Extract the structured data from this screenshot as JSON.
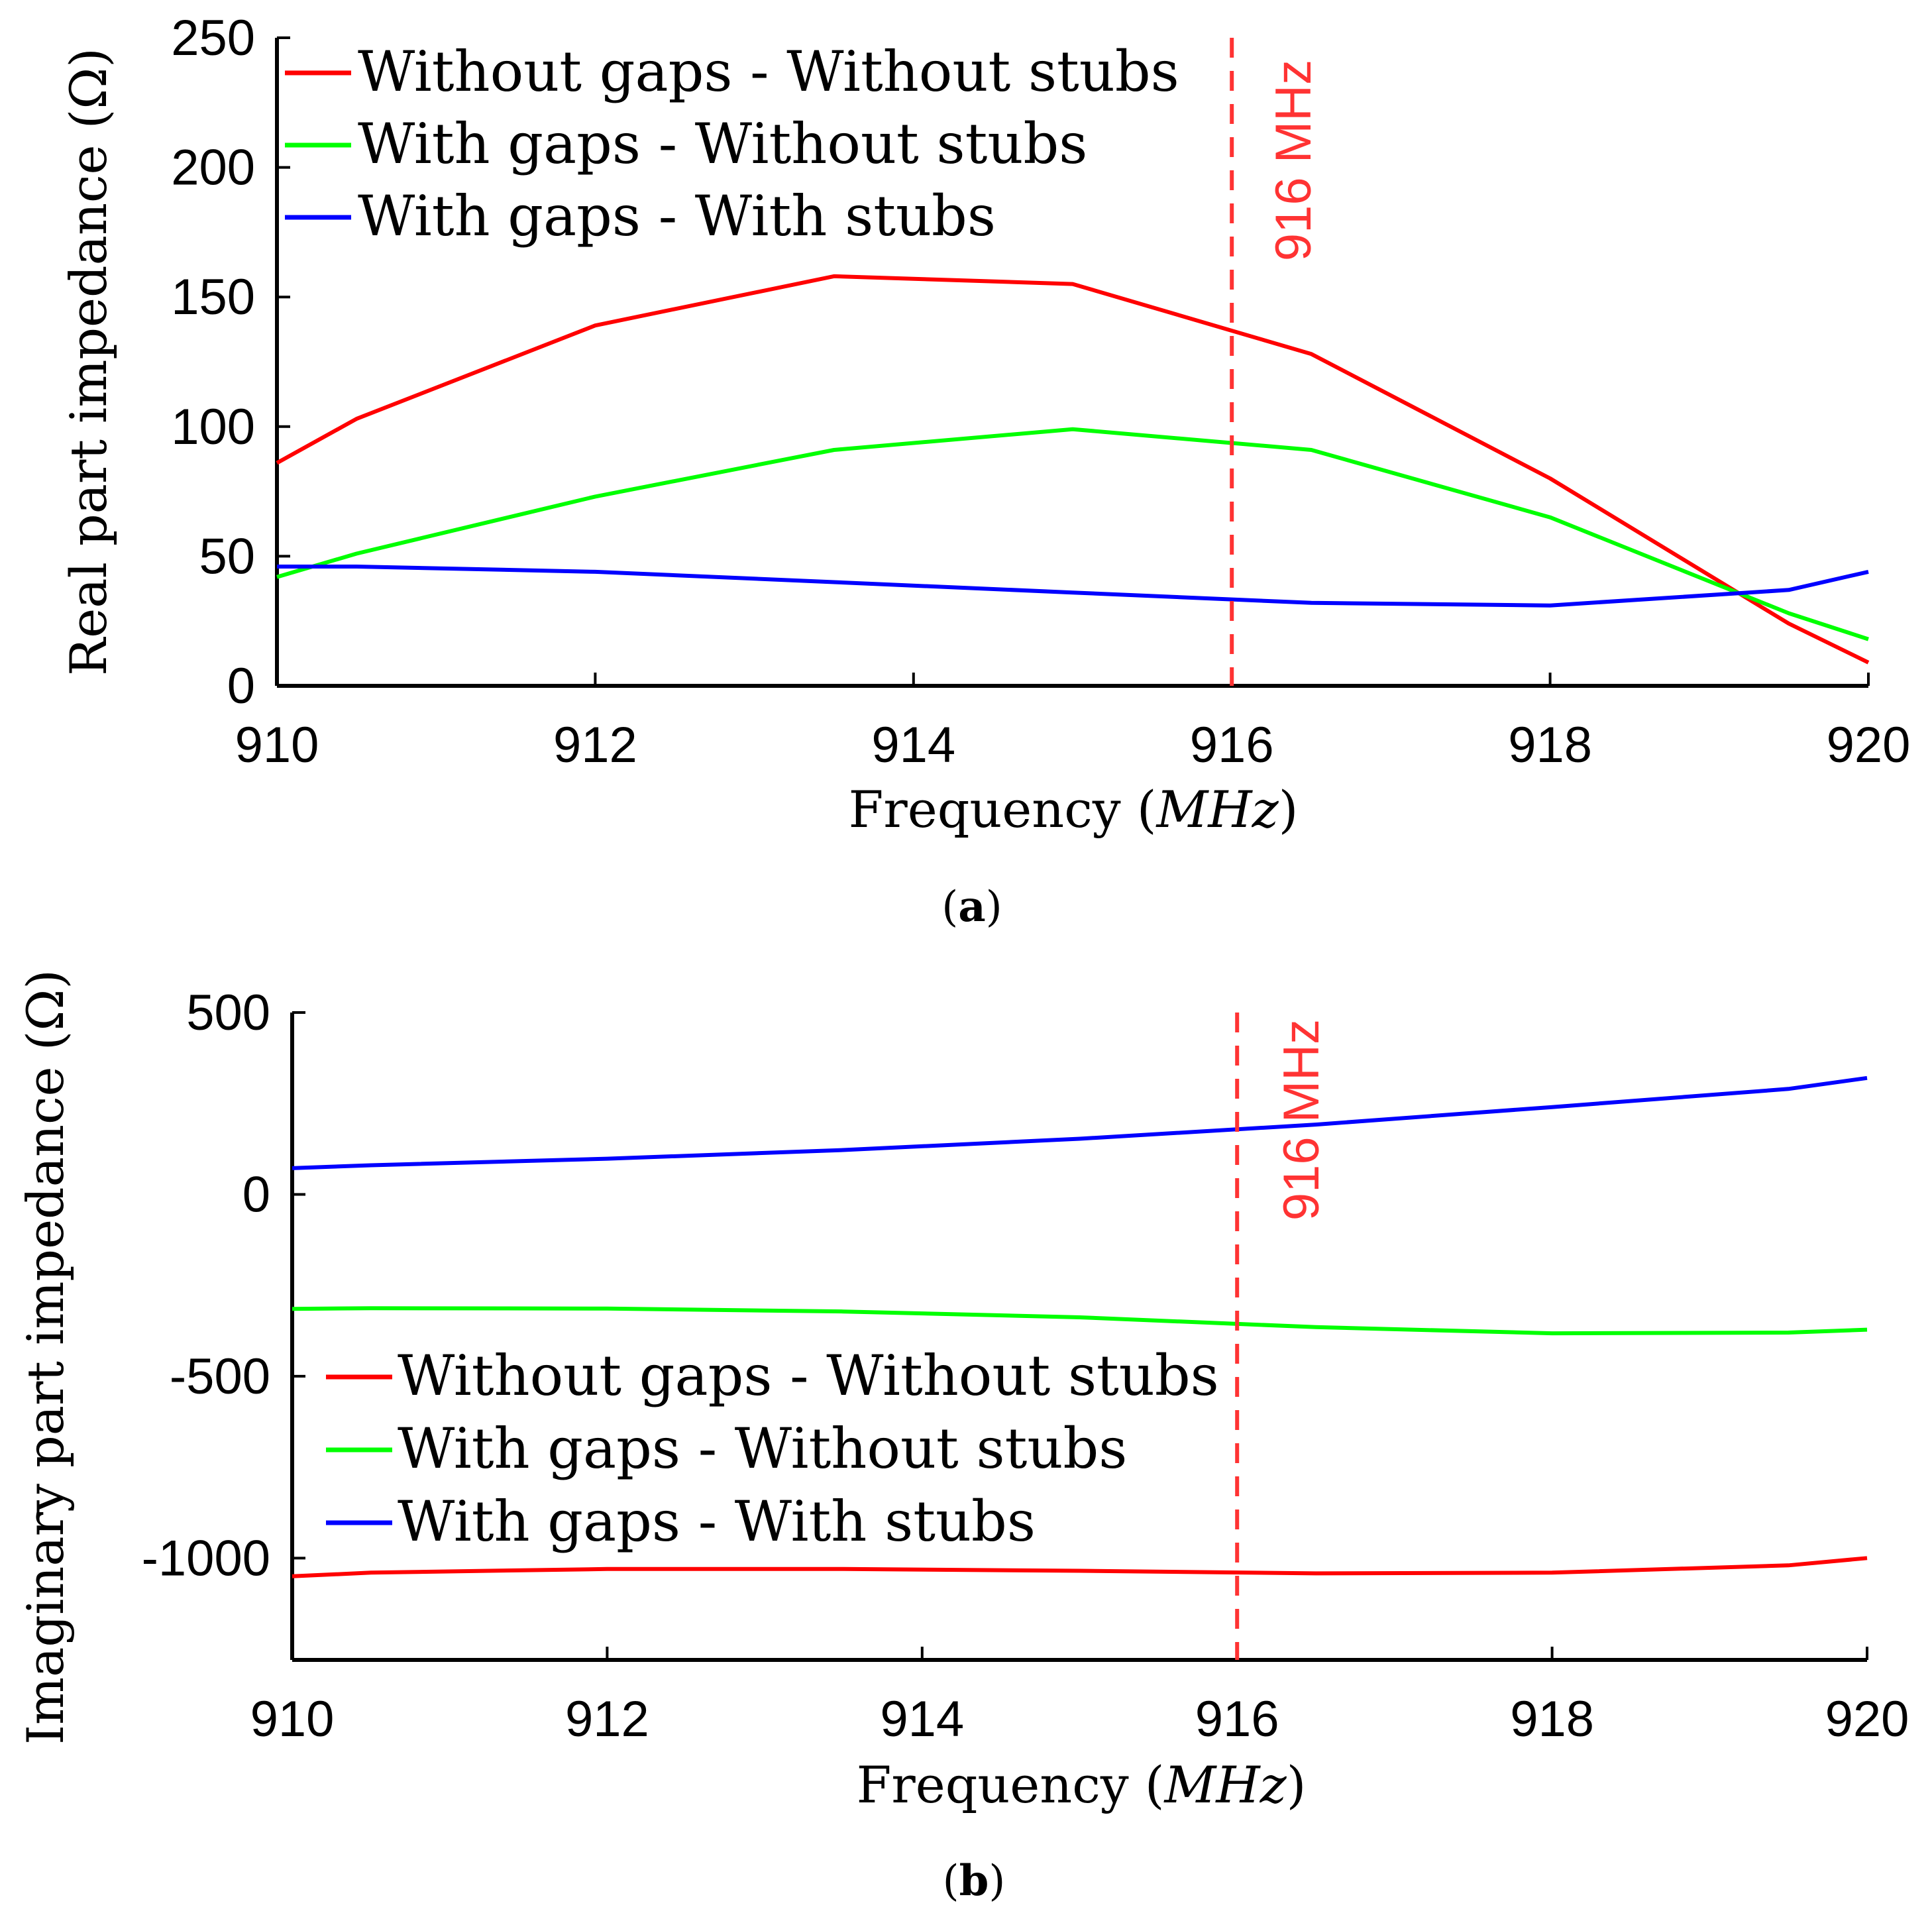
{
  "chart_data": [
    {
      "type": "line",
      "caption_letter": "a",
      "xlabel": "Frequency",
      "xlabel_unit": "MHz",
      "ylabel": "Real part impedance (Ω)",
      "xlim": [
        910,
        920
      ],
      "ylim": [
        0,
        250
      ],
      "xticks": [
        910,
        912,
        914,
        916,
        918,
        920
      ],
      "yticks": [
        0,
        50,
        100,
        150,
        200,
        250
      ],
      "legend_placement": "top-left",
      "marker_line": {
        "x": 916,
        "label": "916 MHz",
        "color": "#ff3333"
      },
      "series": [
        {
          "name": "Without gaps - Without stubs",
          "color": "#ff0000",
          "x": [
            910,
            910.5,
            912,
            913.5,
            915,
            916.5,
            918,
            919.5,
            920
          ],
          "y": [
            86,
            103,
            139,
            158,
            155,
            128,
            80,
            24,
            9
          ]
        },
        {
          "name": "With gaps - Without stubs",
          "color": "#00ff00",
          "x": [
            910,
            910.5,
            912,
            913.5,
            915,
            916.5,
            918,
            919.5,
            920
          ],
          "y": [
            42,
            51,
            73,
            91,
            99,
            91,
            65,
            28,
            18
          ]
        },
        {
          "name": "With gaps - With stubs",
          "color": "#0000ff",
          "x": [
            910,
            910.5,
            912,
            913.5,
            915,
            916.5,
            918,
            919.5,
            920
          ],
          "y": [
            46,
            46,
            44,
            40,
            36,
            32,
            31,
            37,
            44
          ]
        }
      ]
    },
    {
      "type": "line",
      "caption_letter": "b",
      "xlabel": "Frequency",
      "xlabel_unit": "MHz",
      "ylabel": "Imaginary part impedance (Ω)",
      "xlim": [
        910,
        920
      ],
      "ylim": [
        -1280,
        500
      ],
      "xticks": [
        910,
        912,
        914,
        916,
        918,
        920
      ],
      "yticks": [
        -1000,
        -500,
        0,
        500
      ],
      "legend_placement": "bottom-left",
      "marker_line": {
        "x": 916,
        "label": "916 MHz",
        "color": "#ff3333"
      },
      "series": [
        {
          "name": "Without gaps - Without stubs",
          "color": "#ff0000",
          "x": [
            910,
            910.5,
            912,
            913.5,
            915,
            916.5,
            918,
            919.5,
            920
          ],
          "y": [
            -1050,
            -1040,
            -1030,
            -1030,
            -1035,
            -1042,
            -1040,
            -1020,
            -1000
          ]
        },
        {
          "name": "With gaps - Without stubs",
          "color": "#00ff00",
          "x": [
            910,
            910.5,
            912,
            913.5,
            915,
            916.5,
            918,
            919.5,
            920
          ],
          "y": [
            -315,
            -313,
            -314,
            -322,
            -338,
            -365,
            -382,
            -380,
            -372
          ]
        },
        {
          "name": "With gaps - With stubs",
          "color": "#0000ff",
          "x": [
            910,
            910.5,
            912,
            913.5,
            915,
            916.5,
            918,
            919.5,
            920
          ],
          "y": [
            72,
            80,
            98,
            122,
            153,
            192,
            240,
            290,
            320
          ]
        }
      ]
    }
  ]
}
